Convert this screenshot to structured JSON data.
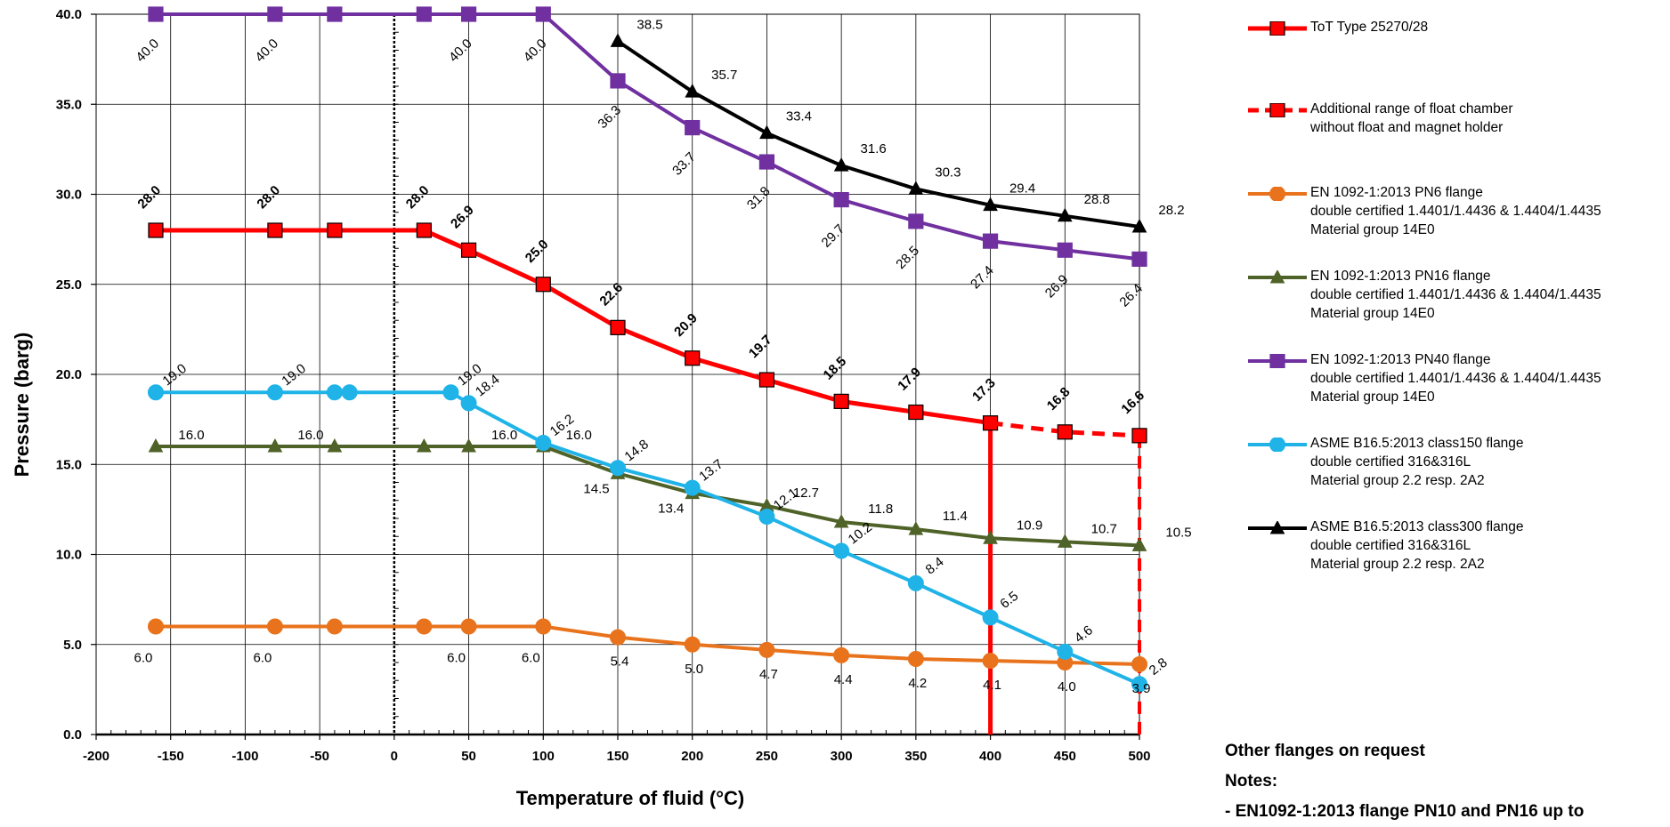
{
  "chart_data": {
    "type": "line",
    "xlabel": "Temperature of fluid (°C)",
    "ylabel": "Pressure (barg)",
    "xlim": [
      -200,
      500
    ],
    "ylim": [
      0,
      40
    ],
    "x_ticks": [
      "-200",
      "-150",
      "-100",
      "-50",
      "0",
      "50",
      "100",
      "150",
      "200",
      "250",
      "300",
      "350",
      "400",
      "450",
      "500"
    ],
    "y_ticks": [
      "0.0",
      "5.0",
      "10.0",
      "15.0",
      "20.0",
      "25.0",
      "30.0",
      "35.0",
      "40.0"
    ],
    "grid": true,
    "legend_position": "right",
    "series": [
      {
        "name": "ToT Type 25270/28",
        "color": "#ff0000",
        "marker": "square",
        "marker_fill": "#ff0000",
        "points": [
          [
            -160,
            28.0
          ],
          [
            -80,
            28.0
          ],
          [
            -40,
            28.0
          ],
          [
            20,
            28.0
          ],
          [
            50,
            26.9
          ],
          [
            100,
            25.0
          ],
          [
            150,
            22.6
          ],
          [
            200,
            20.9
          ],
          [
            250,
            19.7
          ],
          [
            300,
            18.5
          ],
          [
            350,
            17.9
          ],
          [
            400,
            17.3
          ]
        ],
        "labels": [
          "28.0",
          "28.0",
          "",
          "28.0",
          "26.9",
          "25.0",
          "22.6",
          "20.9",
          "19.7",
          "18.5",
          "17.9",
          "17.3"
        ]
      },
      {
        "name": "Additional range of float chamber\nwithout float and magnet holder",
        "color": "#ff0000",
        "dashed": true,
        "marker": "square",
        "marker_fill": "#ff0000",
        "points": [
          [
            400,
            17.3
          ],
          [
            450,
            16.8
          ],
          [
            500,
            16.6
          ]
        ],
        "labels": [
          "",
          "16.8",
          "16.6"
        ]
      },
      {
        "name": "EN 1092-1:2013 PN6 flange\ndouble certified 1.4401/1.4436 & 1.4404/1.4435\nMaterial group 14E0",
        "color": "#e8731c",
        "marker": "circle",
        "points": [
          [
            -160,
            6.0
          ],
          [
            -80,
            6.0
          ],
          [
            -40,
            6.0
          ],
          [
            20,
            6.0
          ],
          [
            50,
            6.0
          ],
          [
            100,
            6.0
          ],
          [
            150,
            5.4
          ],
          [
            200,
            5.0
          ],
          [
            250,
            4.7
          ],
          [
            300,
            4.4
          ],
          [
            350,
            4.2
          ],
          [
            400,
            4.1
          ],
          [
            450,
            4.0
          ],
          [
            500,
            3.9
          ]
        ],
        "labels": [
          "6.0",
          "6.0",
          "",
          "",
          "6.0",
          "6.0",
          "5.4",
          "5.0",
          "4.7",
          "4.4",
          "4.2",
          "4.1",
          "4.0",
          "3.9"
        ]
      },
      {
        "name": "EN 1092-1:2013 PN16 flange\ndouble certified 1.4401/1.4436 & 1.4404/1.4435\nMaterial group 14E0",
        "color": "#4f6228",
        "marker": "triangle",
        "points": [
          [
            -160,
            16.0
          ],
          [
            -80,
            16.0
          ],
          [
            -40,
            16.0
          ],
          [
            20,
            16.0
          ],
          [
            50,
            16.0
          ],
          [
            100,
            16.0
          ],
          [
            150,
            14.5
          ],
          [
            200,
            13.4
          ],
          [
            250,
            12.7
          ],
          [
            300,
            11.8
          ],
          [
            350,
            11.4
          ],
          [
            400,
            10.9
          ],
          [
            450,
            10.7
          ],
          [
            500,
            10.5
          ]
        ],
        "labels": [
          "16.0",
          "16.0",
          "",
          "",
          "16.0",
          "16.0",
          "14.5",
          "13.4",
          "12.7",
          "11.8",
          "11.4",
          "10.9",
          "10.7",
          "10.5"
        ]
      },
      {
        "name": "EN 1092-1:2013 PN40 flange\ndouble certified 1.4401/1.4436 & 1.4404/1.4435\nMaterial group 14E0",
        "color": "#7030a0",
        "marker": "square",
        "points": [
          [
            -160,
            40.0
          ],
          [
            -80,
            40.0
          ],
          [
            -40,
            40.0
          ],
          [
            20,
            40.0
          ],
          [
            50,
            40.0
          ],
          [
            100,
            40.0
          ],
          [
            150,
            36.3
          ],
          [
            200,
            33.7
          ],
          [
            250,
            31.8
          ],
          [
            300,
            29.7
          ],
          [
            350,
            28.5
          ],
          [
            400,
            27.4
          ],
          [
            450,
            26.9
          ],
          [
            500,
            26.4
          ]
        ],
        "labels": [
          "40.0",
          "40.0",
          "",
          "",
          "40.0",
          "40.0",
          "36.3",
          "33.7",
          "31.8",
          "29.7",
          "28.5",
          "27.4",
          "26.9",
          "26.4"
        ]
      },
      {
        "name": "ASME B16.5:2013 class150 flange\ndouble certified 316&316L\nMaterial group 2.2 resp. 2A2",
        "color": "#1fb3e8",
        "marker": "circle",
        "points": [
          [
            -160,
            19.0
          ],
          [
            -80,
            19.0
          ],
          [
            -40,
            19.0
          ],
          [
            -30,
            19.0
          ],
          [
            38,
            19.0
          ],
          [
            50,
            18.4
          ],
          [
            100,
            16.2
          ],
          [
            150,
            14.8
          ],
          [
            200,
            13.7
          ],
          [
            250,
            12.1
          ],
          [
            300,
            10.2
          ],
          [
            350,
            8.4
          ],
          [
            400,
            6.5
          ],
          [
            450,
            4.6
          ],
          [
            500,
            2.8
          ]
        ],
        "labels": [
          "19.0",
          "19.0",
          "",
          "",
          "19.0",
          "18.4",
          "16.2",
          "14.8",
          "13.7",
          "12.1",
          "10.2",
          "8.4",
          "6.5",
          "4.6",
          "2.8"
        ]
      },
      {
        "name": "ASME B16.5:2013 class300 flange\ndouble certified 316&316L\nMaterial group 2.2 resp. 2A2",
        "color": "#000000",
        "marker": "triangle",
        "points": [
          [
            150,
            38.5
          ],
          [
            200,
            35.7
          ],
          [
            250,
            33.4
          ],
          [
            300,
            31.6
          ],
          [
            350,
            30.3
          ],
          [
            400,
            29.4
          ],
          [
            450,
            28.8
          ],
          [
            500,
            28.2
          ]
        ],
        "labels": [
          "38.5",
          "35.7",
          "33.4",
          "31.6",
          "30.3",
          "29.4",
          "28.8",
          "28.2"
        ]
      }
    ]
  },
  "notes": {
    "other": "Other flanges on request",
    "title": "Notes:",
    "line1": "- EN1092-1:2013 flange PN10 and PN16 up to"
  }
}
